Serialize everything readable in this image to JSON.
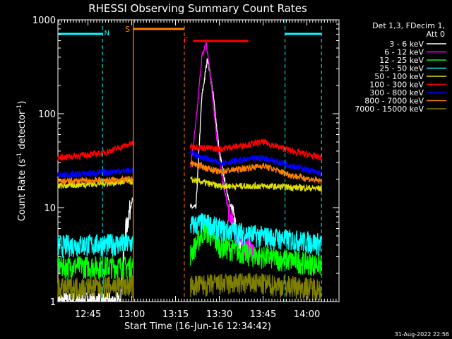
{
  "chart_data": {
    "type": "line",
    "title": "RHESSI Observing Summary Count Rates",
    "xlabel": "Start Time (16-Jun-16 12:34:42)",
    "ylabel_main": "Count Rate (s",
    "ylabel_sup1": "-1",
    "ylabel_mid": " detector",
    "ylabel_sup2": "-1",
    "ylabel_end": ")",
    "yscale": "log",
    "xlim": [
      "12:34:42",
      "14:11:00"
    ],
    "ylim": [
      1,
      1000
    ],
    "x_ticks": [
      "12:45",
      "13:00",
      "13:15",
      "13:30",
      "13:45",
      "14:00"
    ],
    "y_ticks": [
      "1",
      "10",
      "100",
      "1000"
    ],
    "legend_header": [
      "Det 1,3, FDecim 1,",
      "Att 0"
    ],
    "legend_position": "right",
    "footer_date": "31-Aug-2022 22:56",
    "annotations": {
      "N": {
        "label": "N",
        "color": "#00ffff"
      },
      "S": {
        "label": "S",
        "color": "#ff8000"
      },
      "F": {
        "label": "F",
        "color": "#ff0000"
      }
    },
    "night_intervals": [
      {
        "start": "12:34:42",
        "end": "12:50:00"
      },
      {
        "start": "13:52:30",
        "end": "14:05:00"
      }
    ],
    "saa_interval": {
      "start": "13:00:30",
      "end": "13:18:00"
    },
    "flare_interval": {
      "start": "13:21:00",
      "end": "13:40:00"
    },
    "data_gaps": [
      {
        "start": "13:00:30",
        "end": "13:20:00"
      }
    ],
    "series": [
      {
        "name": "3 - 6 keV",
        "color": "#ffffff",
        "points": [
          [
            "12:34:42",
            1.0
          ],
          [
            "12:56:00",
            1.0
          ],
          [
            "12:58:00",
            6
          ],
          [
            "13:00:00",
            12
          ],
          [
            "13:22:00",
            10
          ],
          [
            "13:24:00",
            150
          ],
          [
            "13:26:00",
            400
          ],
          [
            "13:28:00",
            150
          ],
          [
            "13:30:00",
            40
          ],
          [
            "13:32:00",
            18
          ],
          [
            "13:34:00",
            10
          ],
          [
            "13:36:00",
            6
          ],
          [
            "13:38:00",
            4
          ]
        ]
      },
      {
        "name": "6 - 12 keV",
        "color": "#ff00ff",
        "points": [
          [
            "13:20:00",
            25
          ],
          [
            "13:22:00",
            80
          ],
          [
            "13:24:00",
            400
          ],
          [
            "13:25:30",
            560
          ],
          [
            "13:27:00",
            250
          ],
          [
            "13:29:00",
            60
          ],
          [
            "13:31:00",
            20
          ],
          [
            "13:33:00",
            10
          ],
          [
            "13:35:00",
            6
          ],
          [
            "13:38:00",
            4
          ],
          [
            "13:42:00",
            3.5
          ]
        ]
      },
      {
        "name": "12 - 25 keV",
        "color": "#00ff00",
        "points": [
          [
            "12:34:42",
            2.4
          ],
          [
            "13:00:00",
            2.4
          ],
          [
            "13:20:00",
            3.2
          ],
          [
            "13:25:00",
            6
          ],
          [
            "13:30:00",
            4
          ],
          [
            "13:40:00",
            3.2
          ],
          [
            "14:05:00",
            2.5
          ]
        ]
      },
      {
        "name": "25 - 50 keV",
        "color": "#00ffff",
        "points": [
          [
            "12:34:42",
            4.0
          ],
          [
            "13:00:00",
            4.2
          ],
          [
            "13:20:00",
            6.5
          ],
          [
            "13:25:00",
            7
          ],
          [
            "13:30:00",
            6
          ],
          [
            "13:45:00",
            5
          ],
          [
            "14:05:00",
            4.2
          ]
        ]
      },
      {
        "name": "50 - 100 keV",
        "color": "#e0e000",
        "points": [
          [
            "12:34:42",
            17
          ],
          [
            "13:00:00",
            19
          ],
          [
            "13:20:00",
            20
          ],
          [
            "13:30:00",
            17
          ],
          [
            "13:45:00",
            17
          ],
          [
            "14:05:00",
            16
          ]
        ]
      },
      {
        "name": "100 - 300 keV",
        "color": "#ff0000",
        "points": [
          [
            "12:34:42",
            34
          ],
          [
            "12:50:00",
            38
          ],
          [
            "13:00:00",
            48
          ],
          [
            "13:20:00",
            45
          ],
          [
            "13:30:00",
            42
          ],
          [
            "13:45:00",
            50
          ],
          [
            "13:55:00",
            40
          ],
          [
            "14:05:00",
            34
          ]
        ]
      },
      {
        "name": "300 - 800 keV",
        "color": "#0000ff",
        "points": [
          [
            "12:34:42",
            22
          ],
          [
            "13:00:00",
            25
          ],
          [
            "13:20:00",
            38
          ],
          [
            "13:30:00",
            30
          ],
          [
            "13:45:00",
            34
          ],
          [
            "13:55:00",
            28
          ],
          [
            "14:05:00",
            23
          ]
        ]
      },
      {
        "name": "800 - 7000 keV",
        "color": "#ff8000",
        "points": [
          [
            "12:34:42",
            19
          ],
          [
            "13:00:00",
            20
          ],
          [
            "13:20:00",
            30
          ],
          [
            "13:30:00",
            24
          ],
          [
            "13:45:00",
            28
          ],
          [
            "13:55:00",
            22
          ],
          [
            "14:05:00",
            19
          ]
        ]
      },
      {
        "name": "7000 - 15000 keV",
        "color": "#808000",
        "points": [
          [
            "12:34:42",
            1.4
          ],
          [
            "13:00:00",
            1.5
          ],
          [
            "13:20:00",
            1.5
          ],
          [
            "13:40:00",
            1.6
          ],
          [
            "14:05:00",
            1.4
          ]
        ]
      }
    ]
  }
}
